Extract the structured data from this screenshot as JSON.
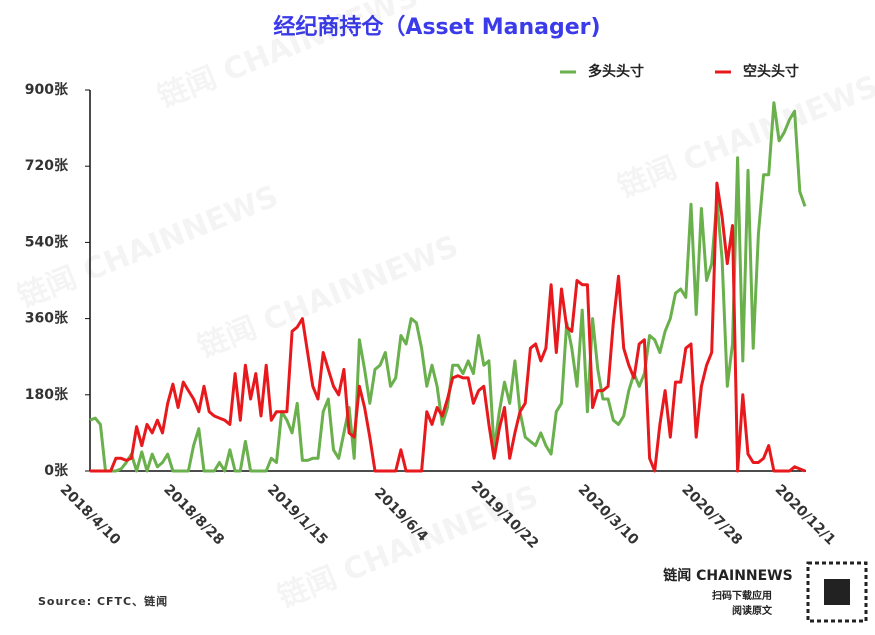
{
  "chart_data": {
    "type": "line",
    "title": "经纪商持仓（Asset Manager)",
    "source": "Source: CFTC、链闻",
    "watermark": "链闻 CHAINNEWS",
    "brand": "链闻 CHAINNEWS",
    "brand_sub1": "扫码下载应用",
    "brand_sub2": "阅读原文",
    "categories": [
      "2018/4/10",
      null,
      null,
      null,
      null,
      null,
      null,
      null,
      null,
      null,
      null,
      null,
      null,
      null,
      null,
      null,
      null,
      null,
      null,
      null,
      "2018/8/28",
      null,
      null,
      null,
      null,
      null,
      null,
      null,
      null,
      null,
      null,
      null,
      null,
      null,
      null,
      null,
      null,
      null,
      null,
      null,
      "2019/1/15",
      null,
      null,
      null,
      null,
      null,
      null,
      null,
      null,
      null,
      null,
      null,
      null,
      null,
      null,
      null,
      null,
      null,
      null,
      null,
      "2019/6/4",
      null,
      null,
      null,
      null,
      null,
      null,
      null,
      null,
      null,
      null,
      null,
      null,
      null,
      null,
      null,
      null,
      null,
      null,
      null,
      "2019/10/22",
      null,
      null,
      null,
      null,
      null,
      null,
      null,
      null,
      null,
      null,
      null,
      null,
      null,
      null,
      null,
      null,
      null,
      null,
      null,
      "2020/3/10",
      null,
      null,
      null,
      null,
      null,
      null,
      null,
      null,
      null,
      null,
      null,
      null,
      null,
      null,
      null,
      null,
      null,
      null,
      null,
      "2020/7/28",
      null,
      null,
      null,
      null,
      null,
      null,
      null,
      null,
      null,
      null,
      null,
      null,
      null,
      null,
      null,
      null,
      null,
      "2020/12/1"
    ],
    "series": [
      {
        "name": "多头头寸",
        "color": "#6ab04c",
        "values": [
          120,
          125,
          110,
          0,
          0,
          0,
          5,
          20,
          40,
          0,
          45,
          0,
          40,
          10,
          20,
          40,
          0,
          0,
          0,
          0,
          60,
          100,
          0,
          0,
          0,
          20,
          0,
          50,
          0,
          0,
          70,
          0,
          0,
          0,
          0,
          30,
          20,
          140,
          120,
          90,
          160,
          25,
          25,
          30,
          30,
          140,
          170,
          50,
          30,
          90,
          150,
          30,
          310,
          240,
          160,
          240,
          250,
          280,
          200,
          220,
          320,
          300,
          360,
          350,
          290,
          200,
          250,
          200,
          110,
          150,
          250,
          250,
          230,
          260,
          230,
          320,
          250,
          260,
          50,
          140,
          210,
          160,
          260,
          140,
          80,
          70,
          60,
          90,
          60,
          40,
          140,
          160,
          350,
          290,
          200,
          380,
          140,
          360,
          240,
          170,
          170,
          120,
          110,
          130,
          190,
          230,
          200,
          230,
          320,
          310,
          280,
          330,
          360,
          420,
          430,
          410,
          630,
          370,
          620,
          450,
          490,
          640,
          500,
          200,
          300,
          740,
          260,
          710,
          290,
          560,
          700,
          700,
          870,
          780,
          800,
          830,
          850,
          660,
          625
        ]
      },
      {
        "name": "空头头寸",
        "color": "#e8191c",
        "values": [
          0,
          0,
          0,
          0,
          0,
          30,
          30,
          25,
          30,
          105,
          60,
          110,
          90,
          120,
          90,
          160,
          205,
          150,
          210,
          190,
          170,
          140,
          200,
          140,
          130,
          125,
          120,
          110,
          230,
          120,
          250,
          170,
          230,
          130,
          250,
          120,
          140,
          140,
          140,
          330,
          340,
          360,
          280,
          200,
          170,
          280,
          240,
          200,
          180,
          240,
          90,
          80,
          200,
          150,
          80,
          0,
          0,
          0,
          0,
          0,
          50,
          0,
          0,
          0,
          0,
          140,
          110,
          150,
          130,
          170,
          220,
          225,
          220,
          220,
          160,
          190,
          200,
          110,
          30,
          100,
          150,
          30,
          90,
          140,
          160,
          290,
          300,
          260,
          290,
          440,
          280,
          430,
          340,
          330,
          450,
          440,
          440,
          150,
          190,
          190,
          200,
          350,
          460,
          290,
          250,
          220,
          300,
          310,
          30,
          0,
          110,
          190,
          80,
          210,
          210,
          290,
          300,
          80,
          200,
          250,
          280,
          680,
          600,
          490,
          580,
          0,
          180,
          40,
          20,
          20,
          30,
          60,
          0,
          0,
          0,
          0,
          10,
          5,
          0
        ]
      }
    ],
    "ylim": [
      0,
      900
    ],
    "yticks": [
      {
        "value": 0,
        "label": "0张"
      },
      {
        "value": 180,
        "label": "180张"
      },
      {
        "value": 360,
        "label": "360张"
      },
      {
        "value": 540,
        "label": "540张"
      },
      {
        "value": 720,
        "label": "720张"
      },
      {
        "value": 900,
        "label": "900张"
      }
    ],
    "legend": "top-right"
  }
}
